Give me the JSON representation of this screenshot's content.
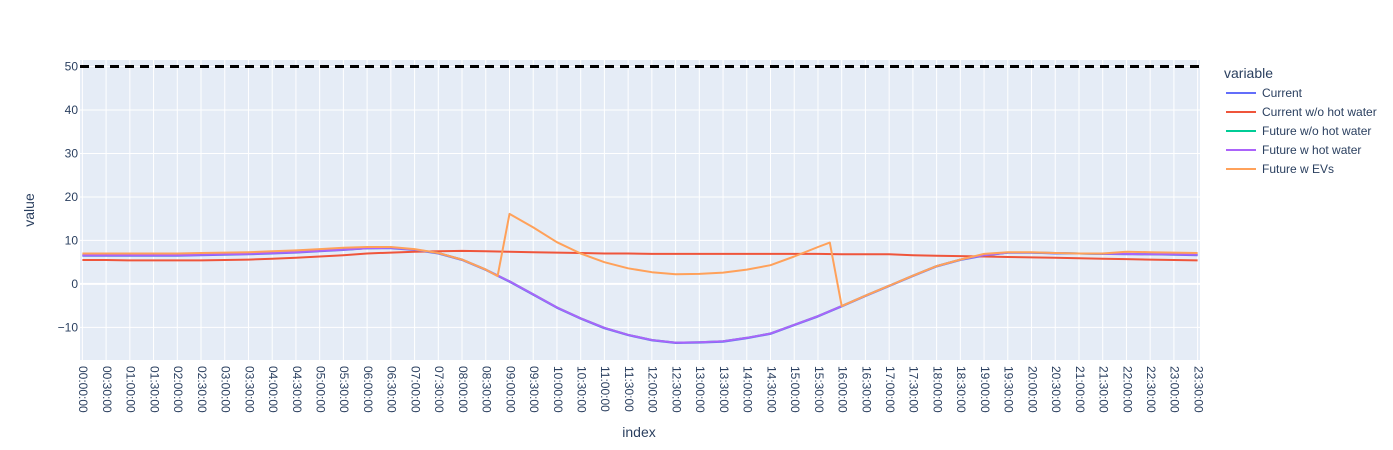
{
  "chart_data": {
    "type": "line",
    "xlabel": "index",
    "ylabel": "value",
    "legend_title": "variable",
    "legend_position": "right",
    "grid": true,
    "ylim": [
      -17.5,
      51.5
    ],
    "yticks": [
      -10,
      0,
      10,
      20,
      30,
      40,
      50
    ],
    "ytick_labels": [
      "−10",
      "0",
      "10",
      "20",
      "30",
      "40",
      "50"
    ],
    "x": [
      "00:00:00",
      "00:30:00",
      "01:00:00",
      "01:30:00",
      "02:00:00",
      "02:30:00",
      "03:00:00",
      "03:30:00",
      "04:00:00",
      "04:30:00",
      "05:00:00",
      "05:30:00",
      "06:00:00",
      "06:30:00",
      "07:00:00",
      "07:30:00",
      "08:00:00",
      "08:30:00",
      "09:00:00",
      "09:30:00",
      "10:00:00",
      "10:30:00",
      "11:00:00",
      "11:30:00",
      "12:00:00",
      "12:30:00",
      "13:00:00",
      "13:30:00",
      "14:00:00",
      "14:30:00",
      "15:00:00",
      "15:30:00",
      "16:00:00",
      "16:30:00",
      "17:00:00",
      "17:30:00",
      "18:00:00",
      "18:30:00",
      "19:00:00",
      "19:30:00",
      "20:00:00",
      "20:30:00",
      "21:00:00",
      "21:30:00",
      "22:00:00",
      "22:30:00",
      "23:00:00",
      "23:30:00"
    ],
    "reference_line": {
      "y": 50,
      "color": "#000000",
      "dash": "dash"
    },
    "series": [
      {
        "name": "Current",
        "color": "#636efa",
        "values": [
          6.5,
          6.5,
          6.5,
          6.5,
          6.5,
          6.6,
          6.7,
          6.8,
          7.0,
          7.2,
          7.5,
          7.8,
          8.2,
          8.2,
          7.8,
          7.0,
          5.5,
          3.2,
          0.5,
          -2.5,
          -5.5,
          -8.0,
          -10.2,
          -11.8,
          -13.0,
          -13.6,
          -13.5,
          -13.3,
          -12.5,
          -11.5,
          -9.5,
          -7.5,
          -5.2,
          -2.8,
          -0.5,
          1.8,
          4.0,
          5.5,
          6.5,
          7.2,
          7.2,
          7.0,
          7.0,
          6.9,
          6.8,
          6.8,
          6.7,
          6.6
        ]
      },
      {
        "name": "Current w/o hot water",
        "color": "#ef553b",
        "values": [
          5.5,
          5.5,
          5.4,
          5.4,
          5.4,
          5.4,
          5.5,
          5.6,
          5.8,
          6.0,
          6.3,
          6.6,
          7.0,
          7.2,
          7.4,
          7.5,
          7.6,
          7.5,
          7.4,
          7.3,
          7.2,
          7.1,
          7.0,
          7.0,
          6.9,
          6.9,
          6.9,
          6.9,
          6.9,
          6.9,
          6.9,
          6.9,
          6.8,
          6.8,
          6.8,
          6.6,
          6.5,
          6.4,
          6.3,
          6.2,
          6.1,
          6.0,
          5.9,
          5.8,
          5.7,
          5.6,
          5.5,
          5.4
        ]
      },
      {
        "name": "Future w/o hot water",
        "color": "#00cc96",
        "values": [
          6.6,
          6.6,
          6.6,
          6.6,
          6.6,
          6.7,
          6.8,
          6.9,
          7.1,
          7.3,
          7.6,
          7.9,
          8.2,
          8.3,
          7.9,
          7.1,
          5.6,
          3.3,
          0.6,
          -2.4,
          -5.4,
          -7.9,
          -10.1,
          -11.7,
          -12.9,
          -13.5,
          -13.4,
          -13.2,
          -12.4,
          -11.4,
          -9.4,
          -7.4,
          -5.1,
          -2.7,
          -0.4,
          1.9,
          4.1,
          5.6,
          6.6,
          7.2,
          7.2,
          7.1,
          7.0,
          6.9,
          6.9,
          6.8,
          6.8,
          6.7
        ]
      },
      {
        "name": "Future w hot water",
        "color": "#ab63fa",
        "values": [
          6.6,
          6.6,
          6.6,
          6.6,
          6.6,
          6.7,
          6.8,
          6.9,
          7.1,
          7.3,
          7.6,
          7.9,
          8.2,
          8.3,
          7.9,
          7.1,
          5.6,
          3.3,
          0.6,
          -2.4,
          -5.4,
          -7.9,
          -10.1,
          -11.7,
          -12.9,
          -13.5,
          -13.4,
          -13.2,
          -12.4,
          -11.4,
          -9.4,
          -7.4,
          -5.1,
          -2.7,
          -0.4,
          1.9,
          4.1,
          5.6,
          6.6,
          7.2,
          7.2,
          7.1,
          7.0,
          6.9,
          6.9,
          6.8,
          6.8,
          6.7
        ]
      },
      {
        "name": "Future w EVs",
        "color": "#ffa15a",
        "points": [
          [
            "00:00:00",
            7.0
          ],
          [
            "00:30:00",
            7.0
          ],
          [
            "01:00:00",
            7.0
          ],
          [
            "01:30:00",
            7.0
          ],
          [
            "02:00:00",
            7.0
          ],
          [
            "02:30:00",
            7.1
          ],
          [
            "03:00:00",
            7.2
          ],
          [
            "03:30:00",
            7.3
          ],
          [
            "04:00:00",
            7.5
          ],
          [
            "04:30:00",
            7.7
          ],
          [
            "05:00:00",
            8.0
          ],
          [
            "05:30:00",
            8.3
          ],
          [
            "06:00:00",
            8.5
          ],
          [
            "06:30:00",
            8.5
          ],
          [
            "07:00:00",
            8.0
          ],
          [
            "07:30:00",
            7.1
          ],
          [
            "08:00:00",
            5.6
          ],
          [
            "08:30:00",
            3.3
          ],
          [
            "08:45:00",
            1.8
          ],
          [
            "09:00:00",
            16.1
          ],
          [
            "09:30:00",
            13.0
          ],
          [
            "10:00:00",
            9.6
          ],
          [
            "10:30:00",
            7.0
          ],
          [
            "11:00:00",
            5.0
          ],
          [
            "11:30:00",
            3.6
          ],
          [
            "12:00:00",
            2.7
          ],
          [
            "12:30:00",
            2.2
          ],
          [
            "13:00:00",
            2.3
          ],
          [
            "13:30:00",
            2.6
          ],
          [
            "14:00:00",
            3.3
          ],
          [
            "14:30:00",
            4.3
          ],
          [
            "15:00:00",
            6.3
          ],
          [
            "15:30:00",
            8.5
          ],
          [
            "15:45:00",
            9.5
          ],
          [
            "16:00:00",
            -5.1
          ],
          [
            "16:30:00",
            -2.7
          ],
          [
            "17:00:00",
            -0.4
          ],
          [
            "17:30:00",
            1.9
          ],
          [
            "18:00:00",
            4.1
          ],
          [
            "18:30:00",
            5.6
          ],
          [
            "19:00:00",
            6.9
          ],
          [
            "19:30:00",
            7.3
          ],
          [
            "20:00:00",
            7.3
          ],
          [
            "20:30:00",
            7.1
          ],
          [
            "21:00:00",
            7.0
          ],
          [
            "21:30:00",
            7.0
          ],
          [
            "22:00:00",
            7.4
          ],
          [
            "22:30:00",
            7.3
          ],
          [
            "23:00:00",
            7.2
          ],
          [
            "23:30:00",
            7.1
          ]
        ]
      }
    ]
  }
}
